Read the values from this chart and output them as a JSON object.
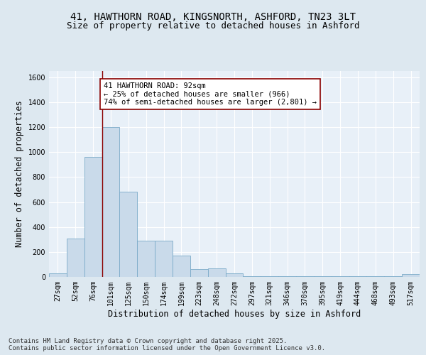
{
  "title_line1": "41, HAWTHORN ROAD, KINGSNORTH, ASHFORD, TN23 3LT",
  "title_line2": "Size of property relative to detached houses in Ashford",
  "xlabel": "Distribution of detached houses by size in Ashford",
  "ylabel": "Number of detached properties",
  "categories": [
    "27sqm",
    "52sqm",
    "76sqm",
    "101sqm",
    "125sqm",
    "150sqm",
    "174sqm",
    "199sqm",
    "223sqm",
    "248sqm",
    "272sqm",
    "297sqm",
    "321sqm",
    "346sqm",
    "370sqm",
    "395sqm",
    "419sqm",
    "444sqm",
    "468sqm",
    "493sqm",
    "517sqm"
  ],
  "values": [
    30,
    310,
    960,
    1200,
    680,
    290,
    290,
    170,
    60,
    70,
    30,
    5,
    5,
    5,
    5,
    5,
    5,
    5,
    5,
    5,
    20
  ],
  "bar_color": "#c9daea",
  "bar_edge_color": "#7aaac8",
  "vline_color": "#8B0000",
  "annotation_text": "41 HAWTHORN ROAD: 92sqm\n← 25% of detached houses are smaller (966)\n74% of semi-detached houses are larger (2,801) →",
  "annotation_box_color": "#ffffff",
  "annotation_box_edge_color": "#8B0000",
  "ylim": [
    0,
    1650
  ],
  "yticks": [
    0,
    200,
    400,
    600,
    800,
    1000,
    1200,
    1400,
    1600
  ],
  "background_color": "#dde8f0",
  "plot_bg_color": "#e8f0f8",
  "grid_color": "#ffffff",
  "footnote": "Contains HM Land Registry data © Crown copyright and database right 2025.\nContains public sector information licensed under the Open Government Licence v3.0.",
  "title_fontsize": 10,
  "subtitle_fontsize": 9,
  "axis_label_fontsize": 8.5,
  "tick_fontsize": 7,
  "annotation_fontsize": 7.5,
  "footnote_fontsize": 6.5
}
